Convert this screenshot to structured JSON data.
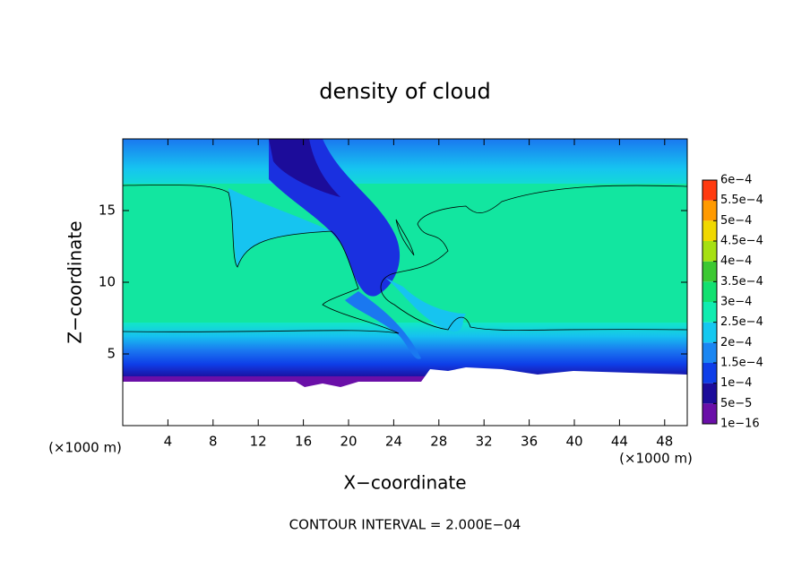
{
  "chart_data": {
    "type": "contour",
    "title": "density of cloud",
    "xlabel": "X−coordinate",
    "ylabel": "Z−coordinate",
    "x_unit": "(×1000 m)",
    "note": "CONTOUR INTERVAL = 2.000E−04",
    "xlim": [
      0,
      50
    ],
    "ylim": [
      0,
      20
    ],
    "xticks": [
      4,
      8,
      12,
      16,
      20,
      24,
      28,
      32,
      36,
      40,
      44,
      48
    ],
    "yticks": [
      5,
      10,
      15
    ],
    "colorbar": {
      "lim": [
        1e-16,
        0.0006
      ],
      "ticks": [
        {
          "value": 1e-16,
          "label": "1e−16"
        },
        {
          "value": 5e-05,
          "label": "5e−5"
        },
        {
          "value": 0.0001,
          "label": "1e−4"
        },
        {
          "value": 0.00015,
          "label": "1.5e−4"
        },
        {
          "value": 0.0002,
          "label": "2e−4"
        },
        {
          "value": 0.00025,
          "label": "2.5e−4"
        },
        {
          "value": 0.0003,
          "label": "3e−4"
        },
        {
          "value": 0.00035,
          "label": "3.5e−4"
        },
        {
          "value": 0.0004,
          "label": "4e−4"
        },
        {
          "value": 0.00045,
          "label": "4.5e−4"
        },
        {
          "value": 0.0005,
          "label": "5e−4"
        },
        {
          "value": 0.00055,
          "label": "5.5e−4"
        },
        {
          "value": 0.0006,
          "label": "6e−4"
        }
      ],
      "colors": [
        "#6a0fa8",
        "#1c0c9a",
        "#0e3ee8",
        "#1a86f2",
        "#14c8f0",
        "#10ecb0",
        "#12e070",
        "#3cc832",
        "#a6e012",
        "#f0d800",
        "#ff9a00",
        "#ff3a10"
      ]
    }
  }
}
